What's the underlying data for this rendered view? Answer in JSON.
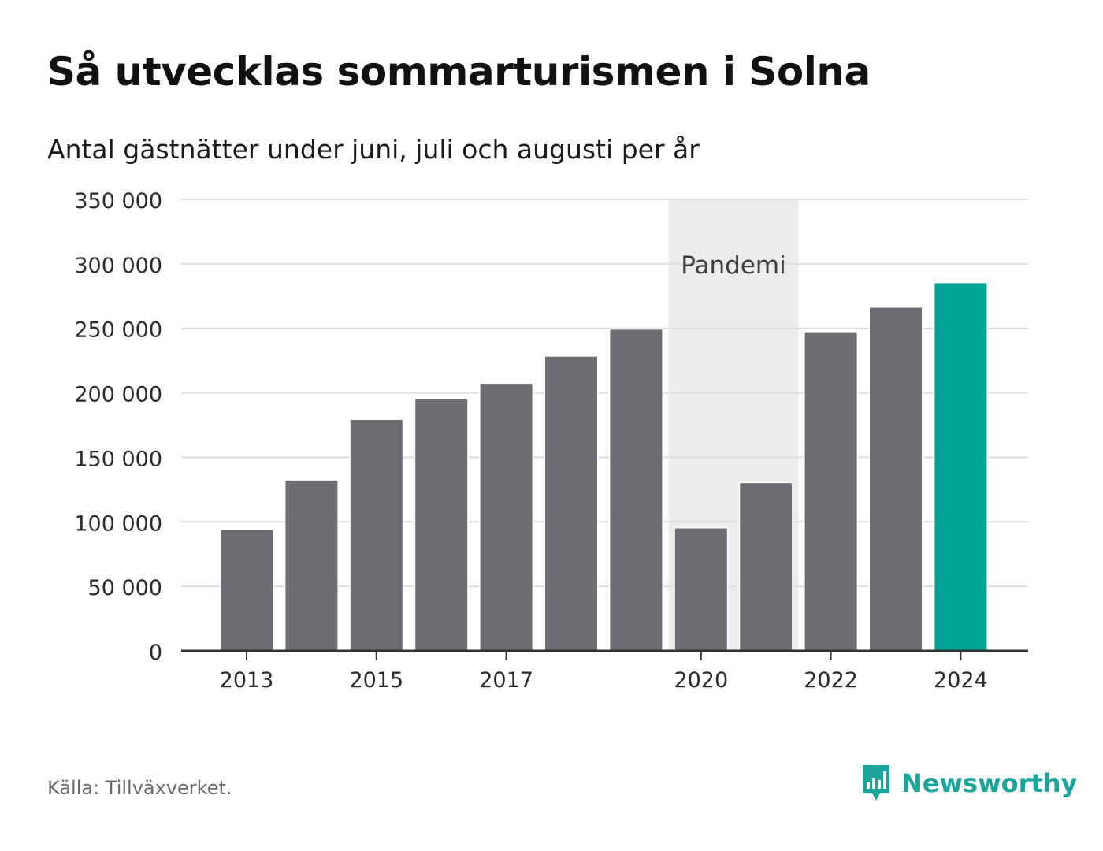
{
  "header": {
    "title": "Så utvecklas sommarturismen i Solna",
    "subtitle": "Antal gästnätter under juni, juli och augusti per år"
  },
  "footer": {
    "source": "Källa: Tillväxverket.",
    "brand": "Newsworthy"
  },
  "colors": {
    "bar": "#6e6d73",
    "highlight": "#00a398",
    "shade": "#ececec",
    "grid": "#dedede",
    "axis": "#333333",
    "brand": "#1aa59a"
  },
  "icons": {
    "brand_logo": "bar-chart-speech-bubble-icon"
  },
  "chart_data": {
    "type": "bar",
    "categories": [
      "2013",
      "2014",
      "2015",
      "2016",
      "2017",
      "2018",
      "2019",
      "2020",
      "2021",
      "2022",
      "2023",
      "2024"
    ],
    "values": [
      94000,
      132000,
      179000,
      195000,
      207000,
      228000,
      249000,
      95000,
      130000,
      247000,
      266000,
      285000
    ],
    "highlight_category": "2024",
    "ylim": [
      0,
      350000
    ],
    "yticks": [
      0,
      50000,
      100000,
      150000,
      200000,
      250000,
      300000,
      350000
    ],
    "ytick_labels": [
      "0",
      "50 000",
      "100 000",
      "150 000",
      "200 000",
      "250 000",
      "300 000",
      "350 000"
    ],
    "xtick_labels": [
      "2013",
      "2015",
      "2017",
      "2020",
      "2022",
      "2024"
    ],
    "annotation": {
      "label": "Pandemi",
      "from": "2020",
      "to": "2021"
    },
    "grid": true,
    "legend": "none"
  }
}
